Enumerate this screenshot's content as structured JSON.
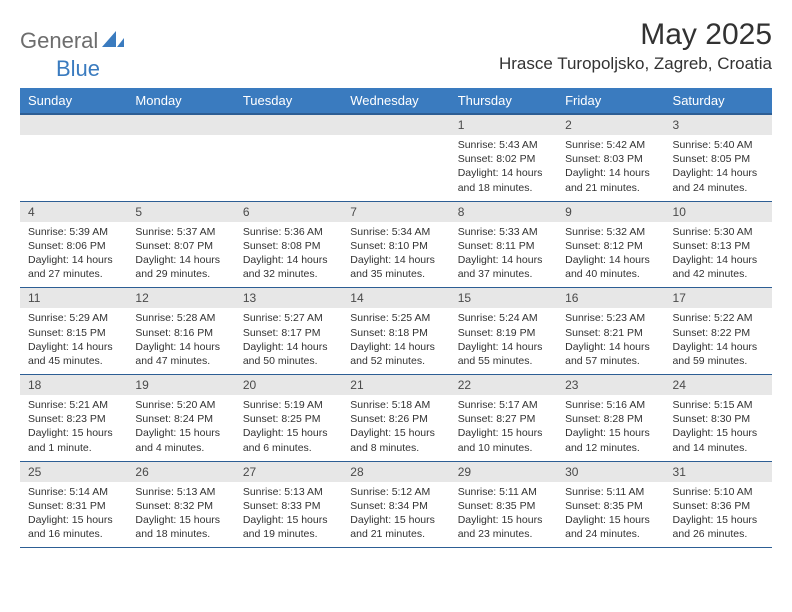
{
  "logo": {
    "text1": "General",
    "text2": "Blue"
  },
  "title": "May 2025",
  "location": "Hrasce Turopoljsko, Zagreb, Croatia",
  "colors": {
    "header_bg": "#3a7bbf",
    "header_border": "#2d5e94",
    "daynum_bg": "#e7e7e7",
    "text": "#323232",
    "logo_gray": "#6d6d6d",
    "logo_blue": "#3a7bbf",
    "page_bg": "#ffffff"
  },
  "day_headers": [
    "Sunday",
    "Monday",
    "Tuesday",
    "Wednesday",
    "Thursday",
    "Friday",
    "Saturday"
  ],
  "weeks": [
    {
      "nums": [
        "",
        "",
        "",
        "",
        "1",
        "2",
        "3"
      ],
      "details": [
        null,
        null,
        null,
        null,
        {
          "sunrise": "5:43 AM",
          "sunset": "8:02 PM",
          "daylight": "14 hours and 18 minutes."
        },
        {
          "sunrise": "5:42 AM",
          "sunset": "8:03 PM",
          "daylight": "14 hours and 21 minutes."
        },
        {
          "sunrise": "5:40 AM",
          "sunset": "8:05 PM",
          "daylight": "14 hours and 24 minutes."
        }
      ]
    },
    {
      "nums": [
        "4",
        "5",
        "6",
        "7",
        "8",
        "9",
        "10"
      ],
      "details": [
        {
          "sunrise": "5:39 AM",
          "sunset": "8:06 PM",
          "daylight": "14 hours and 27 minutes."
        },
        {
          "sunrise": "5:37 AM",
          "sunset": "8:07 PM",
          "daylight": "14 hours and 29 minutes."
        },
        {
          "sunrise": "5:36 AM",
          "sunset": "8:08 PM",
          "daylight": "14 hours and 32 minutes."
        },
        {
          "sunrise": "5:34 AM",
          "sunset": "8:10 PM",
          "daylight": "14 hours and 35 minutes."
        },
        {
          "sunrise": "5:33 AM",
          "sunset": "8:11 PM",
          "daylight": "14 hours and 37 minutes."
        },
        {
          "sunrise": "5:32 AM",
          "sunset": "8:12 PM",
          "daylight": "14 hours and 40 minutes."
        },
        {
          "sunrise": "5:30 AM",
          "sunset": "8:13 PM",
          "daylight": "14 hours and 42 minutes."
        }
      ]
    },
    {
      "nums": [
        "11",
        "12",
        "13",
        "14",
        "15",
        "16",
        "17"
      ],
      "details": [
        {
          "sunrise": "5:29 AM",
          "sunset": "8:15 PM",
          "daylight": "14 hours and 45 minutes."
        },
        {
          "sunrise": "5:28 AM",
          "sunset": "8:16 PM",
          "daylight": "14 hours and 47 minutes."
        },
        {
          "sunrise": "5:27 AM",
          "sunset": "8:17 PM",
          "daylight": "14 hours and 50 minutes."
        },
        {
          "sunrise": "5:25 AM",
          "sunset": "8:18 PM",
          "daylight": "14 hours and 52 minutes."
        },
        {
          "sunrise": "5:24 AM",
          "sunset": "8:19 PM",
          "daylight": "14 hours and 55 minutes."
        },
        {
          "sunrise": "5:23 AM",
          "sunset": "8:21 PM",
          "daylight": "14 hours and 57 minutes."
        },
        {
          "sunrise": "5:22 AM",
          "sunset": "8:22 PM",
          "daylight": "14 hours and 59 minutes."
        }
      ]
    },
    {
      "nums": [
        "18",
        "19",
        "20",
        "21",
        "22",
        "23",
        "24"
      ],
      "details": [
        {
          "sunrise": "5:21 AM",
          "sunset": "8:23 PM",
          "daylight": "15 hours and 1 minute."
        },
        {
          "sunrise": "5:20 AM",
          "sunset": "8:24 PM",
          "daylight": "15 hours and 4 minutes."
        },
        {
          "sunrise": "5:19 AM",
          "sunset": "8:25 PM",
          "daylight": "15 hours and 6 minutes."
        },
        {
          "sunrise": "5:18 AM",
          "sunset": "8:26 PM",
          "daylight": "15 hours and 8 minutes."
        },
        {
          "sunrise": "5:17 AM",
          "sunset": "8:27 PM",
          "daylight": "15 hours and 10 minutes."
        },
        {
          "sunrise": "5:16 AM",
          "sunset": "8:28 PM",
          "daylight": "15 hours and 12 minutes."
        },
        {
          "sunrise": "5:15 AM",
          "sunset": "8:30 PM",
          "daylight": "15 hours and 14 minutes."
        }
      ]
    },
    {
      "nums": [
        "25",
        "26",
        "27",
        "28",
        "29",
        "30",
        "31"
      ],
      "details": [
        {
          "sunrise": "5:14 AM",
          "sunset": "8:31 PM",
          "daylight": "15 hours and 16 minutes."
        },
        {
          "sunrise": "5:13 AM",
          "sunset": "8:32 PM",
          "daylight": "15 hours and 18 minutes."
        },
        {
          "sunrise": "5:13 AM",
          "sunset": "8:33 PM",
          "daylight": "15 hours and 19 minutes."
        },
        {
          "sunrise": "5:12 AM",
          "sunset": "8:34 PM",
          "daylight": "15 hours and 21 minutes."
        },
        {
          "sunrise": "5:11 AM",
          "sunset": "8:35 PM",
          "daylight": "15 hours and 23 minutes."
        },
        {
          "sunrise": "5:11 AM",
          "sunset": "8:35 PM",
          "daylight": "15 hours and 24 minutes."
        },
        {
          "sunrise": "5:10 AM",
          "sunset": "8:36 PM",
          "daylight": "15 hours and 26 minutes."
        }
      ]
    }
  ],
  "labels": {
    "sunrise": "Sunrise:",
    "sunset": "Sunset:",
    "daylight": "Daylight:"
  }
}
